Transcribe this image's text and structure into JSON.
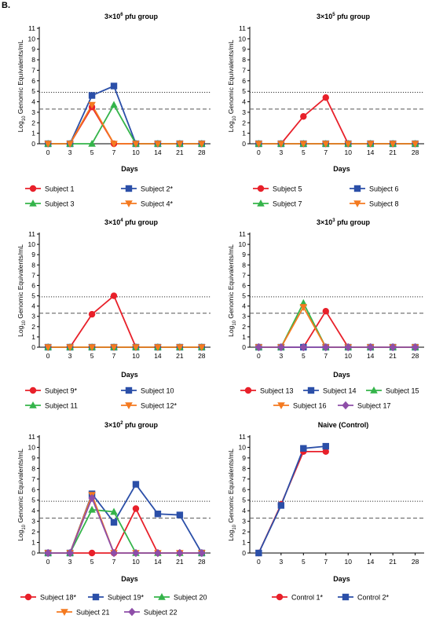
{
  "panel_label": "B.",
  "shared_axes": {
    "ylabel_main": "Log",
    "ylabel_sub": "10",
    "ylabel_rest": " Genomic Equivalents/mL",
    "xlabel": "Days",
    "x_ticks": [
      "0",
      "3",
      "5",
      "7",
      "10",
      "14",
      "21",
      "28"
    ],
    "y_ticks": [
      "0",
      "1",
      "2",
      "3",
      "4",
      "5",
      "6",
      "7",
      "8",
      "9",
      "10",
      "11"
    ],
    "ylim": [
      0,
      11
    ],
    "dotted_threshold": 4.9,
    "dashed_threshold": 3.3
  },
  "chart_data": [
    {
      "type": "line",
      "title_main": "3×10",
      "title_sup": "6",
      "title_rest": " pfu group",
      "categories": [
        "0",
        "3",
        "5",
        "7",
        "10",
        "14",
        "21",
        "28"
      ],
      "series": [
        {
          "name": "Subject 1",
          "color": "#e8202a",
          "marker": "circle",
          "values": [
            0,
            0,
            3.5,
            0,
            0,
            0,
            0,
            0
          ]
        },
        {
          "name": "Subject 2*",
          "color": "#2b4fa8",
          "marker": "square",
          "values": [
            0,
            0,
            4.6,
            5.5,
            0,
            0,
            0,
            0
          ]
        },
        {
          "name": "Subject 3",
          "color": "#34b44a",
          "marker": "triangle-up",
          "values": [
            0,
            0,
            0,
            3.7,
            0,
            0,
            0,
            0
          ]
        },
        {
          "name": "Subject 4*",
          "color": "#f47a20",
          "marker": "triangle-down",
          "values": [
            0,
            0,
            3.7,
            0,
            0,
            0,
            0,
            0
          ]
        }
      ]
    },
    {
      "type": "line",
      "title_main": "3×10",
      "title_sup": "5",
      "title_rest": " pfu group",
      "categories": [
        "0",
        "3",
        "5",
        "7",
        "10",
        "14",
        "21",
        "28"
      ],
      "series": [
        {
          "name": "Subject 5",
          "color": "#e8202a",
          "marker": "circle",
          "values": [
            0,
            0,
            2.6,
            4.4,
            0,
            0,
            0,
            0
          ]
        },
        {
          "name": "Subject 6",
          "color": "#2b4fa8",
          "marker": "square",
          "values": [
            0,
            0,
            0,
            0,
            0,
            0,
            0,
            0
          ]
        },
        {
          "name": "Subject 7",
          "color": "#34b44a",
          "marker": "triangle-up",
          "values": [
            0,
            0,
            0,
            0,
            0,
            0,
            0,
            0
          ]
        },
        {
          "name": "Subject 8",
          "color": "#f47a20",
          "marker": "triangle-down",
          "values": [
            0,
            0,
            0,
            0,
            0,
            0,
            0,
            0
          ]
        }
      ]
    },
    {
      "type": "line",
      "title_main": "3×10",
      "title_sup": "4",
      "title_rest": " pfu group",
      "categories": [
        "0",
        "3",
        "5",
        "7",
        "10",
        "14",
        "21",
        "28"
      ],
      "series": [
        {
          "name": "Subject 9*",
          "color": "#e8202a",
          "marker": "circle",
          "values": [
            0,
            0,
            3.2,
            5.0,
            0,
            0,
            0,
            0
          ]
        },
        {
          "name": "Subject 10",
          "color": "#2b4fa8",
          "marker": "square",
          "values": [
            0,
            0,
            0,
            0,
            0,
            0,
            0,
            0
          ]
        },
        {
          "name": "Subject 11",
          "color": "#34b44a",
          "marker": "triangle-up",
          "values": [
            0,
            0,
            0,
            0,
            0,
            0,
            0,
            0
          ]
        },
        {
          "name": "Subject 12*",
          "color": "#f47a20",
          "marker": "triangle-down",
          "values": [
            0,
            0,
            0,
            0,
            0,
            0,
            0,
            0
          ]
        }
      ]
    },
    {
      "type": "line",
      "title_main": "3×10",
      "title_sup": "3",
      "title_rest": " pfu group",
      "categories": [
        "0",
        "3",
        "5",
        "7",
        "10",
        "14",
        "21",
        "28"
      ],
      "series": [
        {
          "name": "Subject 13",
          "color": "#e8202a",
          "marker": "circle",
          "values": [
            0,
            0,
            0,
            3.5,
            0,
            0,
            0,
            0
          ]
        },
        {
          "name": "Subject 14",
          "color": "#2b4fa8",
          "marker": "square",
          "values": [
            0,
            0,
            0,
            0,
            0,
            0,
            0,
            0
          ]
        },
        {
          "name": "Subject 15",
          "color": "#34b44a",
          "marker": "triangle-up",
          "values": [
            0,
            0,
            4.3,
            0,
            0,
            0,
            0,
            0
          ]
        },
        {
          "name": "Subject 16",
          "color": "#f47a20",
          "marker": "triangle-down",
          "values": [
            0,
            0,
            3.9,
            0,
            0,
            0,
            0,
            0
          ]
        },
        {
          "name": "Subject 17",
          "color": "#8e4ea8",
          "marker": "diamond",
          "values": [
            0,
            0,
            0,
            0,
            0,
            0,
            0,
            0
          ]
        }
      ]
    },
    {
      "type": "line",
      "title_main": "3×10",
      "title_sup": "2",
      "title_rest": " pfu group",
      "categories": [
        "0",
        "3",
        "5",
        "7",
        "10",
        "14",
        "21",
        "28"
      ],
      "series": [
        {
          "name": "Subject 18*",
          "color": "#e8202a",
          "marker": "circle",
          "values": [
            0,
            0,
            0,
            0,
            4.2,
            0,
            0,
            0
          ]
        },
        {
          "name": "Subject 19*",
          "color": "#2b4fa8",
          "marker": "square",
          "values": [
            0,
            0,
            5.6,
            2.9,
            6.5,
            3.7,
            3.6,
            0
          ]
        },
        {
          "name": "Subject 20",
          "color": "#34b44a",
          "marker": "triangle-up",
          "values": [
            0,
            0,
            4.1,
            3.9,
            0,
            0,
            0,
            0
          ]
        },
        {
          "name": "Subject 21",
          "color": "#f47a20",
          "marker": "triangle-down",
          "values": [
            0,
            0,
            5.5,
            0,
            0,
            0,
            0,
            0
          ]
        },
        {
          "name": "Subject 22",
          "color": "#8e4ea8",
          "marker": "diamond",
          "values": [
            0,
            0,
            5.2,
            0,
            0,
            0,
            0,
            0
          ]
        }
      ]
    },
    {
      "type": "line",
      "title_main": "Naive (Control)",
      "title_sup": "",
      "title_rest": "",
      "categories": [
        "0",
        "3",
        "5",
        "7",
        "10",
        "14",
        "21",
        "28"
      ],
      "series": [
        {
          "name": "Control 1*",
          "color": "#e8202a",
          "marker": "circle",
          "values": [
            0,
            4.6,
            9.6,
            9.6,
            null,
            null,
            null,
            null
          ]
        },
        {
          "name": "Control 2*",
          "color": "#2b4fa8",
          "marker": "square",
          "values": [
            0,
            4.5,
            9.9,
            10.1,
            null,
            null,
            null,
            null
          ]
        }
      ]
    }
  ]
}
